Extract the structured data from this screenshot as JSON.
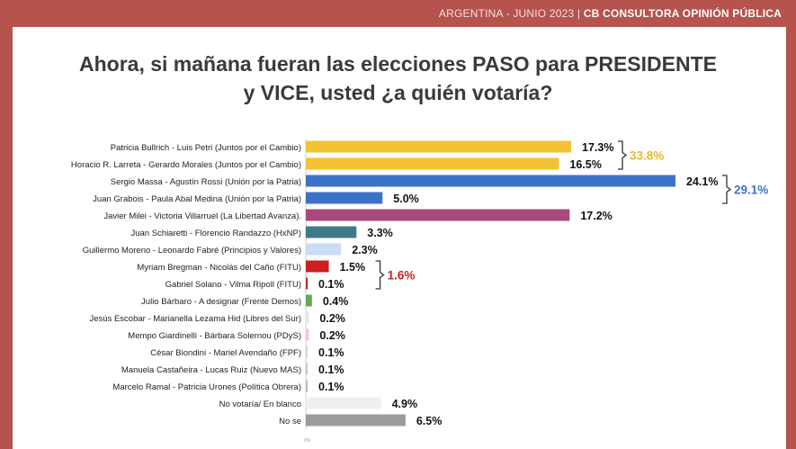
{
  "header": {
    "source_prefix": "ARGENTINA  - JUNIO 2023 | ",
    "source_org": "CB CONSULTORA OPINIÓN PÚBLICA"
  },
  "chart_data": {
    "type": "bar",
    "orientation": "horizontal",
    "title_line1": "Ahora, si mañana fueran las elecciones PASO para PRESIDENTE",
    "title_line2": "y VICE, usted ¿a quién votaría?",
    "categories": [
      "Patricia Bullrich - Luis Petri (Juntos por el Cambio)",
      "Horacio R. Larreta - Gerardo Morales (Juntos por el Cambio)",
      "Sergio Massa - Agustín Rossi (Unión por la Patria)",
      "Juan Grabois - Paula Abal Medina (Unión por la Patria)",
      "Javier Milei - Victoria Villarruel (La Libertad Avanza).",
      "Juan Schiaretti - Florencio Randazzo (HxNP)",
      "Guillermo Moreno - Leonardo Fabré (Principios y Valores)",
      "Myriam Bregman - Nicolás del Caño (FITU)",
      "Gabriel Solano - Vilma Ripoll (FITU)",
      "Julio Bárbaro - A designar (Frente Demos)",
      "Jesús Escobar - Marianella Lezama Hid (Libres del Sur)",
      "Mempo Giardinelli - Bárbara Solernou (PDyS)",
      "César Biondini - Mariel Avendaño (FPF)",
      "Manuela Castañeira - Lucas Ruiz (Nuevo MAS)",
      "Marcelo Ramal - Patricia Urones (Política Obrera)",
      "No votaría/ En blanco",
      "No se"
    ],
    "values": [
      17.3,
      16.5,
      24.1,
      5.0,
      17.2,
      3.3,
      2.3,
      1.5,
      0.1,
      0.4,
      0.2,
      0.2,
      0.1,
      0.1,
      0.1,
      4.9,
      6.5
    ],
    "value_labels": [
      "17.3%",
      "16.5%",
      "24.1%",
      "5.0%",
      "17.2%",
      "3.3%",
      "2.3%",
      "1.5%",
      "0.1%",
      "0.4%",
      "0.2%",
      "0.2%",
      "0.1%",
      "0.1%",
      "0.1%",
      "4.9%",
      "6.5%"
    ],
    "colors": [
      "#f2c232",
      "#f2c232",
      "#3c73c8",
      "#3c73c8",
      "#a8487c",
      "#3d7c86",
      "#c9dcf3",
      "#cc1f1f",
      "#cc1f1f",
      "#6aa84f",
      "#e4e4ea",
      "#efc8cf",
      "#d6d6d6",
      "#c9c9c9",
      "#bdbdbd",
      "#efefef",
      "#9b9b9b"
    ],
    "group_totals": [
      {
        "label": "33.8%",
        "rows": [
          0,
          1
        ],
        "color": "#e8b830"
      },
      {
        "label": "29.1%",
        "rows": [
          2,
          3
        ],
        "color": "#3c73c8"
      },
      {
        "label": "1.6%",
        "rows": [
          7,
          8
        ],
        "color": "#cc1f1f"
      }
    ],
    "xlim": [
      0,
      25
    ],
    "axis_tick_label": "0%",
    "grid": false,
    "legend": "none"
  }
}
